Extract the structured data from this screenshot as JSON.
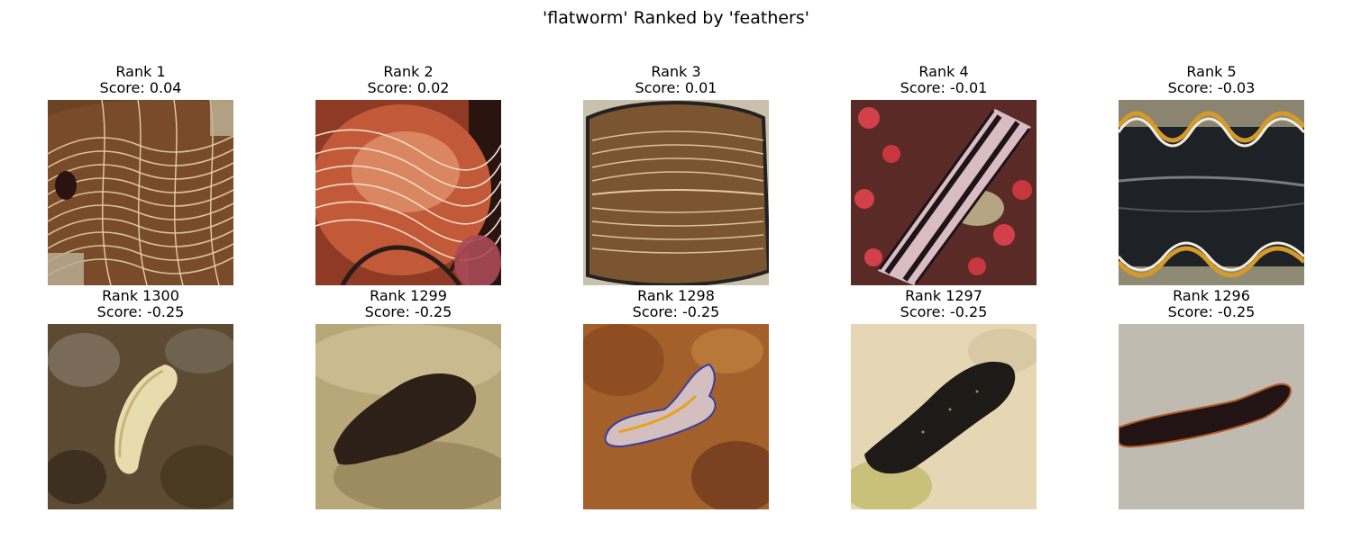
{
  "figure": {
    "title": "'flatworm' Ranked by 'feathers'"
  },
  "panels": [
    {
      "rank": "Rank 1",
      "score": "Score: 0.04"
    },
    {
      "rank": "Rank 2",
      "score": "Score: 0.02"
    },
    {
      "rank": "Rank 3",
      "score": "Score: 0.01"
    },
    {
      "rank": "Rank 4",
      "score": "Score: -0.01"
    },
    {
      "rank": "Rank 5",
      "score": "Score: -0.03"
    },
    {
      "rank": "Rank 1300",
      "score": "Score: -0.25"
    },
    {
      "rank": "Rank 1299",
      "score": "Score: -0.25"
    },
    {
      "rank": "Rank 1298",
      "score": "Score: -0.25"
    },
    {
      "rank": "Rank 1297",
      "score": "Score: -0.25"
    },
    {
      "rank": "Rank 1296",
      "score": "Score: -0.25"
    }
  ]
}
